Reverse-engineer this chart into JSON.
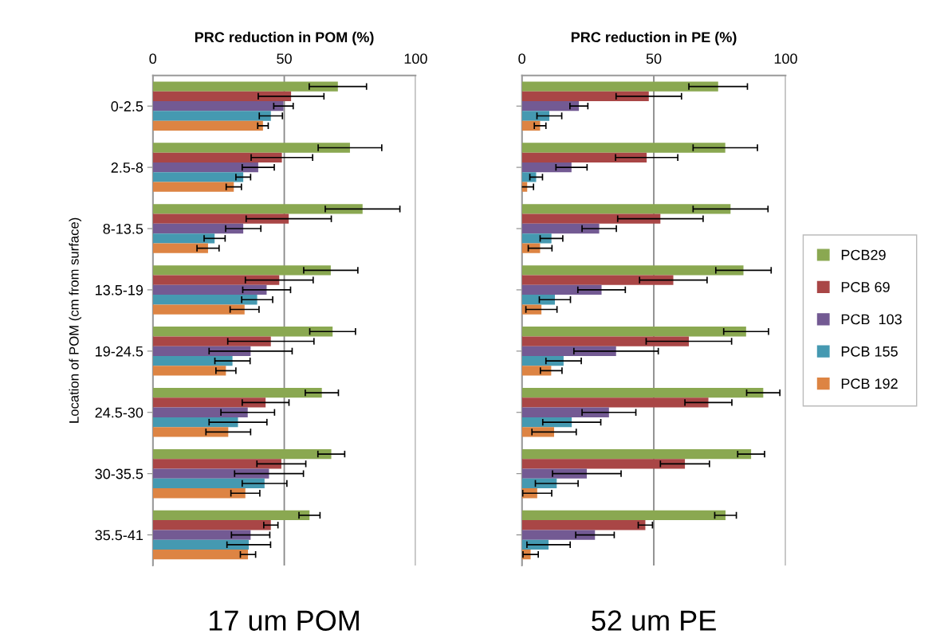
{
  "chart_data": [
    {
      "type": "bar",
      "orientation": "horizontal",
      "xlabel": "PRC reduction in POM (%)",
      "ylabel": "Location of POM (cm from surface)",
      "categories": [
        "0-2.5",
        "2.5-8",
        "8-13.5",
        "13.5-19",
        "19-24.5",
        "24.5-30",
        "30-35.5",
        "35.5-41"
      ],
      "xlim": [
        0,
        100
      ],
      "xticks": [
        0,
        50,
        100
      ],
      "grid": "x",
      "legend": false,
      "annotations": [
        "17 um POM"
      ],
      "series": [
        {
          "color": "#8aa851",
          "values": [
            70.4,
            75.0,
            79.8,
            67.7,
            68.4,
            64.3,
            67.9,
            59.6
          ],
          "errors": [
            10.9,
            12.1,
            14.2,
            10.3,
            8.7,
            6.3,
            5.1,
            4.0
          ]
        },
        {
          "color": "#a94646",
          "values": [
            52.6,
            49.1,
            51.7,
            48.1,
            44.9,
            42.9,
            48.9,
            44.9
          ],
          "errors": [
            12.5,
            11.7,
            16.2,
            12.9,
            16.4,
            8.9,
            9.3,
            2.7
          ]
        },
        {
          "color": "#735a93",
          "values": [
            49.7,
            40.1,
            34.4,
            43.3,
            37.2,
            36.1,
            44.2,
            37.2
          ],
          "errors": [
            3.7,
            6.1,
            6.7,
            9.1,
            15.8,
            10.2,
            13.1,
            7.3
          ]
        },
        {
          "color": "#4599b1",
          "values": [
            44.9,
            34.4,
            23.5,
            39.7,
            30.3,
            32.4,
            42.5,
            36.5
          ],
          "errors": [
            4.4,
            2.8,
            4.0,
            5.9,
            6.7,
            11.0,
            8.5,
            8.3
          ]
        },
        {
          "color": "#dd8443",
          "values": [
            41.9,
            30.8,
            21.0,
            34.9,
            27.8,
            28.7,
            35.2,
            36.2
          ],
          "errors": [
            2.0,
            2.9,
            4.2,
            5.5,
            3.8,
            8.5,
            5.5,
            2.9
          ]
        }
      ]
    },
    {
      "type": "bar",
      "orientation": "horizontal",
      "xlabel": "PRC reduction in PE (%)",
      "categories": [
        null,
        null,
        null,
        null,
        null,
        null,
        null,
        null
      ],
      "xlim": [
        0,
        100
      ],
      "xticks": [
        0,
        50,
        100
      ],
      "grid": "x",
      "legend": "right",
      "tick_labels": "x",
      "annotations": [
        "52 um PE"
      ],
      "series": [
        {
          "name": "PCB29",
          "color": "#8aa851",
          "values": [
            74.4,
            77.1,
            79.1,
            84.0,
            85.0,
            91.5,
            86.9,
            77.2
          ],
          "errors": [
            11.1,
            12.2,
            14.2,
            10.5,
            8.5,
            6.3,
            5.1,
            4.1
          ]
        },
        {
          "name": "PCB 69",
          "color": "#a94646",
          "values": [
            48.1,
            47.3,
            52.5,
            57.4,
            63.3,
            70.7,
            61.8,
            46.8
          ],
          "errors": [
            12.4,
            11.8,
            16.2,
            12.8,
            16.2,
            8.9,
            9.3,
            2.7
          ]
        },
        {
          "name": "PCB  103",
          "color": "#735a93",
          "values": [
            21.6,
            18.8,
            29.3,
            30.2,
            35.7,
            33.0,
            24.6,
            27.7
          ],
          "errors": [
            3.4,
            5.9,
            6.5,
            9.0,
            16.0,
            10.2,
            13.0,
            7.3
          ]
        },
        {
          "name": "PCB 155",
          "color": "#4599b1",
          "values": [
            10.4,
            5.4,
            11.2,
            12.5,
            15.8,
            18.9,
            13.2,
            10.1
          ],
          "errors": [
            4.7,
            2.4,
            4.3,
            5.9,
            6.7,
            11.0,
            8.1,
            8.2
          ]
        },
        {
          "name": "PCB 192",
          "color": "#dd8443",
          "values": [
            6.9,
            2.0,
            6.9,
            7.4,
            11.1,
            12.2,
            5.8,
            3.3
          ],
          "errors": [
            2.2,
            2.4,
            4.5,
            5.9,
            4.1,
            8.4,
            5.5,
            2.9
          ]
        }
      ]
    }
  ]
}
